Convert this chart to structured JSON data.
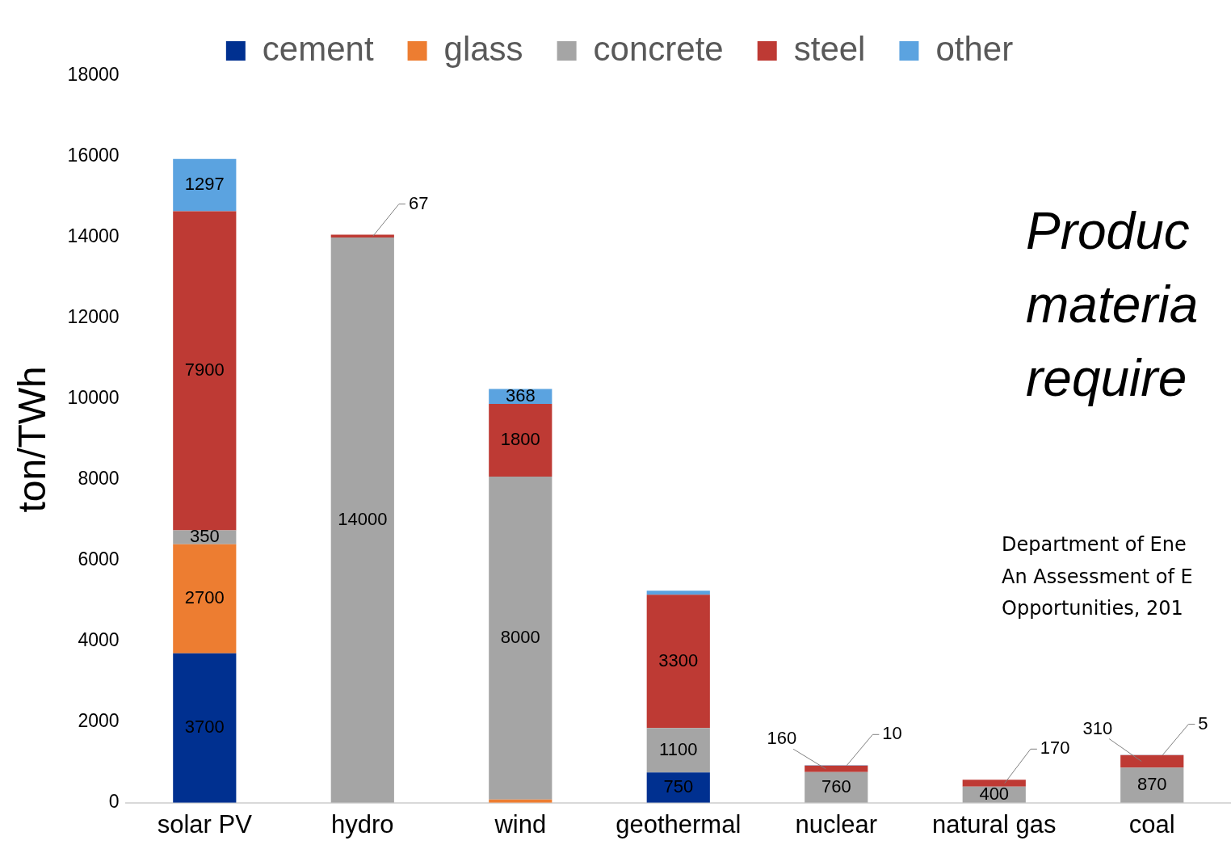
{
  "chart_data": {
    "type": "bar",
    "stacked": true,
    "ylabel": "ton/TWh",
    "legend": "top",
    "categories": [
      "solar PV",
      "hydro",
      "wind",
      "geothermal",
      "nuclear",
      "natural gas",
      "coal"
    ],
    "ylim": [
      0,
      18000
    ],
    "yticks": [
      0,
      2000,
      4000,
      6000,
      8000,
      10000,
      12000,
      14000,
      16000,
      18000
    ],
    "series": [
      {
        "name": "cement",
        "color": "#003090",
        "values": [
          3700,
          0,
          0,
          750,
          0,
          0,
          0
        ],
        "value_labels": [
          "3700",
          null,
          null,
          "750",
          null,
          null,
          null
        ]
      },
      {
        "name": "glass",
        "color": "#ed7d31",
        "values": [
          2700,
          0,
          80,
          0,
          0,
          0,
          0
        ],
        "value_labels": [
          "2700",
          null,
          null,
          null,
          null,
          null,
          null
        ]
      },
      {
        "name": "concrete",
        "color": "#a5a5a5",
        "values": [
          350,
          14000,
          8000,
          1100,
          760,
          400,
          870
        ],
        "value_labels": [
          "350",
          "14000",
          "8000",
          "1100",
          "760",
          "400",
          "870"
        ]
      },
      {
        "name": "steel",
        "color": "#be3a34",
        "values": [
          7900,
          67,
          1800,
          3300,
          160,
          170,
          310
        ],
        "value_labels": [
          "7900",
          "67",
          "1800",
          "3300",
          "160",
          "170",
          "310"
        ]
      },
      {
        "name": "other",
        "color": "#5ba3e0",
        "values": [
          1297,
          0,
          368,
          100,
          10,
          0,
          5
        ],
        "value_labels": [
          "1297",
          null,
          "368",
          null,
          "10",
          null,
          "5"
        ]
      }
    ],
    "annotations": [
      "Produc\nmateria\nrequire",
      "Department of Ene\nAn Assessment of E\nOpportunities, 201"
    ]
  }
}
